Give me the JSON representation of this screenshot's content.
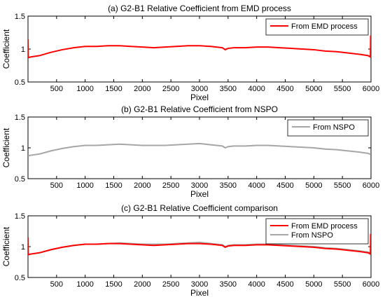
{
  "chart_data": [
    {
      "type": "line",
      "title": "(a) G2-B1 Relative Coefficient from EMD process",
      "xlabel": "Pixel",
      "ylabel": "Coefficient",
      "xlim": [
        0,
        6000
      ],
      "ylim": [
        0.5,
        1.5
      ],
      "xticks": [
        "500",
        "1000",
        "1500",
        "2000",
        "2500",
        "3000",
        "3500",
        "4000",
        "4500",
        "5000",
        "5500",
        "6000"
      ],
      "yticks": [
        "0.5",
        "1",
        "1.5"
      ],
      "legend_position": "top-right",
      "series": [
        {
          "name": "From EMD process",
          "color": "#ff0000",
          "x": [
            0,
            5,
            10,
            50,
            200,
            400,
            600,
            800,
            1000,
            1200,
            1400,
            1600,
            1800,
            2000,
            2200,
            2400,
            2600,
            2800,
            3000,
            3200,
            3400,
            3450,
            3500,
            3600,
            3800,
            4000,
            4200,
            4400,
            4600,
            4800,
            5000,
            5200,
            5400,
            5600,
            5800,
            5950,
            5990,
            5995,
            6000
          ],
          "y": [
            1.15,
            0.88,
            0.87,
            0.88,
            0.9,
            0.95,
            0.99,
            1.02,
            1.04,
            1.04,
            1.05,
            1.05,
            1.04,
            1.03,
            1.02,
            1.03,
            1.04,
            1.05,
            1.05,
            1.04,
            1.02,
            0.99,
            1.01,
            1.02,
            1.02,
            1.03,
            1.03,
            1.02,
            1.01,
            1.0,
            0.99,
            0.97,
            0.96,
            0.94,
            0.92,
            0.9,
            0.88,
            1.2,
            1.18
          ]
        }
      ]
    },
    {
      "type": "line",
      "title": "(b) G2-B1 Relative Coefficient from NSPO",
      "xlabel": "Pixel",
      "ylabel": "Coefficient",
      "xlim": [
        0,
        6000
      ],
      "ylim": [
        0.5,
        1.5
      ],
      "xticks": [
        "500",
        "1000",
        "1500",
        "2000",
        "2500",
        "3000",
        "3500",
        "4000",
        "4500",
        "5000",
        "5500",
        "6000"
      ],
      "yticks": [
        "0.5",
        "1",
        "1.5"
      ],
      "legend_position": "top-right",
      "series": [
        {
          "name": "From NSPO",
          "color": "#a6a6a6",
          "x": [
            0,
            50,
            200,
            400,
            600,
            800,
            1000,
            1200,
            1400,
            1600,
            1800,
            2000,
            2200,
            2400,
            2600,
            2800,
            3000,
            3200,
            3400,
            3450,
            3500,
            3600,
            3800,
            4000,
            4200,
            4400,
            4600,
            4800,
            5000,
            5200,
            5400,
            5600,
            5800,
            5950,
            6000
          ],
          "y": [
            0.87,
            0.88,
            0.9,
            0.95,
            0.99,
            1.02,
            1.04,
            1.04,
            1.05,
            1.06,
            1.05,
            1.04,
            1.04,
            1.04,
            1.05,
            1.06,
            1.07,
            1.05,
            1.03,
            1.0,
            1.02,
            1.03,
            1.03,
            1.04,
            1.04,
            1.03,
            1.02,
            1.01,
            1.0,
            0.98,
            0.97,
            0.95,
            0.93,
            0.91,
            0.89
          ]
        }
      ]
    },
    {
      "type": "line",
      "title": "(c) G2-B1 Relative Coefficient comparison",
      "xlabel": "Pixel",
      "ylabel": "Coefficient",
      "xlim": [
        0,
        6000
      ],
      "ylim": [
        0.5,
        1.5
      ],
      "xticks": [
        "500",
        "1000",
        "1500",
        "2000",
        "2500",
        "3000",
        "3500",
        "4000",
        "4500",
        "5000",
        "5500",
        "6000"
      ],
      "yticks": [
        "0.5",
        "1",
        "1.5"
      ],
      "legend_position": "top-right",
      "series": [
        {
          "name": "From EMD process",
          "color": "#ff0000",
          "x": [
            0,
            5,
            10,
            50,
            200,
            400,
            600,
            800,
            1000,
            1200,
            1400,
            1600,
            1800,
            2000,
            2200,
            2400,
            2600,
            2800,
            3000,
            3200,
            3400,
            3450,
            3500,
            3600,
            3800,
            4000,
            4200,
            4400,
            4600,
            4800,
            5000,
            5200,
            5400,
            5600,
            5800,
            5950,
            5990,
            5995,
            6000
          ],
          "y": [
            1.15,
            0.88,
            0.87,
            0.88,
            0.9,
            0.95,
            0.99,
            1.02,
            1.04,
            1.04,
            1.05,
            1.05,
            1.04,
            1.03,
            1.02,
            1.03,
            1.04,
            1.05,
            1.05,
            1.04,
            1.02,
            0.99,
            1.01,
            1.02,
            1.02,
            1.03,
            1.03,
            1.02,
            1.01,
            1.0,
            0.99,
            0.97,
            0.96,
            0.94,
            0.92,
            0.9,
            0.88,
            1.2,
            1.18
          ]
        },
        {
          "name": "From NSPO",
          "color": "#a6a6a6",
          "x": [
            0,
            50,
            200,
            400,
            600,
            800,
            1000,
            1200,
            1400,
            1600,
            1800,
            2000,
            2200,
            2400,
            2600,
            2800,
            3000,
            3200,
            3400,
            3450,
            3500,
            3600,
            3800,
            4000,
            4200,
            4400,
            4600,
            4800,
            5000,
            5200,
            5400,
            5600,
            5800,
            5950,
            6000
          ],
          "y": [
            0.87,
            0.88,
            0.9,
            0.95,
            0.99,
            1.02,
            1.04,
            1.04,
            1.05,
            1.06,
            1.05,
            1.04,
            1.04,
            1.04,
            1.05,
            1.06,
            1.07,
            1.05,
            1.03,
            1.0,
            1.02,
            1.03,
            1.03,
            1.04,
            1.04,
            1.03,
            1.02,
            1.01,
            1.0,
            0.98,
            0.97,
            0.95,
            0.93,
            0.91,
            0.89
          ]
        }
      ]
    }
  ]
}
